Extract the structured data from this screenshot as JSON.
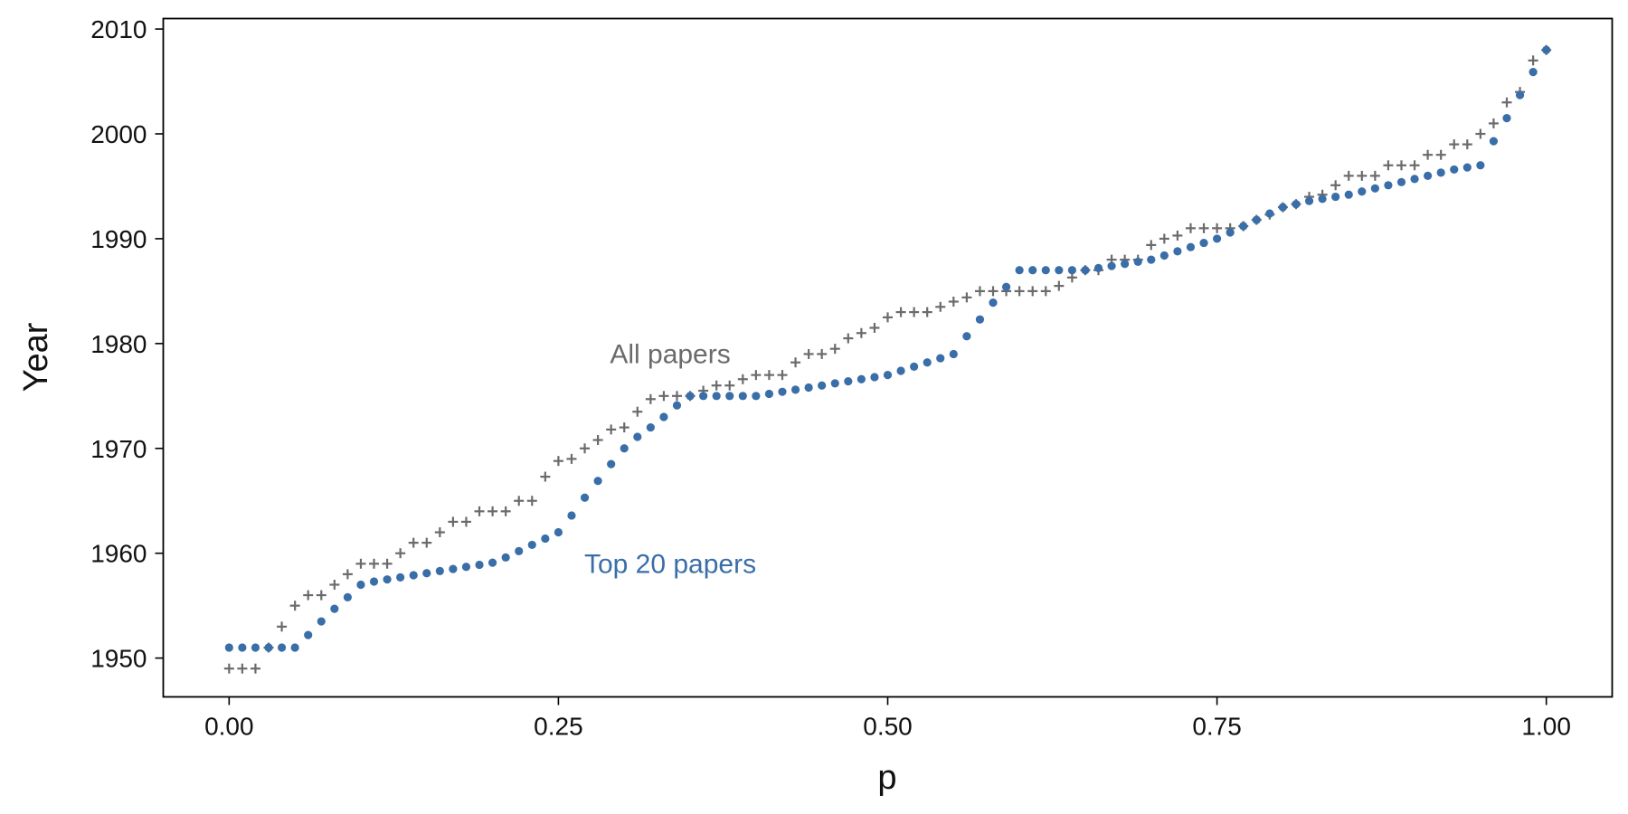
{
  "chart_data": {
    "type": "scatter",
    "xlabel": "p",
    "ylabel": "Year",
    "xlim": [
      -0.05,
      1.05
    ],
    "ylim": [
      1946.3,
      2011
    ],
    "xticks": [
      0,
      0.25,
      0.5,
      0.75,
      1
    ],
    "xtick_labels": [
      "0.00",
      "0.25",
      "0.50",
      "0.75",
      "1.00"
    ],
    "yticks": [
      1950,
      1960,
      1970,
      1980,
      1990,
      2000,
      2010
    ],
    "ytick_labels": [
      "1950",
      "1960",
      "1970",
      "1980",
      "1990",
      "2000",
      "2010"
    ],
    "grid": false,
    "legend": "none",
    "annotations": [
      {
        "text": "All papers",
        "x": 0.35,
        "y": 1979,
        "color": "#6b6b6b"
      },
      {
        "text": "Top 20 papers",
        "x": 0.35,
        "y": 1959,
        "color": "#3a6ea8"
      }
    ],
    "series": [
      {
        "marker": "plus",
        "color": "#6b6b6b",
        "x": [
          0.0,
          0.01,
          0.02,
          0.03,
          0.04,
          0.05,
          0.06,
          0.07,
          0.08,
          0.09,
          0.1,
          0.11,
          0.12,
          0.13,
          0.14,
          0.15,
          0.16,
          0.17,
          0.18,
          0.19,
          0.2,
          0.21,
          0.22,
          0.23,
          0.24,
          0.25,
          0.26,
          0.27,
          0.28,
          0.29,
          0.3,
          0.31,
          0.32,
          0.33,
          0.34,
          0.35,
          0.36,
          0.37,
          0.38,
          0.39,
          0.4,
          0.41,
          0.42,
          0.43,
          0.44,
          0.45,
          0.46,
          0.47,
          0.48,
          0.49,
          0.5,
          0.51,
          0.52,
          0.53,
          0.54,
          0.55,
          0.56,
          0.57,
          0.58,
          0.59,
          0.6,
          0.61,
          0.62,
          0.63,
          0.64,
          0.65,
          0.66,
          0.67,
          0.68,
          0.69,
          0.7,
          0.71,
          0.72,
          0.73,
          0.74,
          0.75,
          0.76,
          0.77,
          0.78,
          0.79,
          0.8,
          0.81,
          0.82,
          0.83,
          0.84,
          0.85,
          0.86,
          0.87,
          0.88,
          0.89,
          0.9,
          0.91,
          0.92,
          0.93,
          0.94,
          0.95,
          0.96,
          0.97,
          0.98,
          0.99,
          1.0
        ],
        "y": [
          1949,
          1949,
          1949,
          1951,
          1953,
          1955,
          1956,
          1956,
          1957,
          1958,
          1959,
          1959,
          1959,
          1960,
          1961,
          1961,
          1962,
          1963,
          1963,
          1964,
          1964,
          1964,
          1965,
          1965,
          1967.3,
          1968.8,
          1969,
          1970,
          1970.8,
          1971.8,
          1972,
          1973.5,
          1974.7,
          1975,
          1975,
          1975,
          1975.5,
          1976,
          1976,
          1976.6,
          1977,
          1977,
          1977,
          1978.2,
          1979,
          1979,
          1979.5,
          1980.5,
          1981,
          1981.5,
          1982.5,
          1983,
          1983,
          1983,
          1983.5,
          1984,
          1984.4,
          1985,
          1985,
          1985,
          1985,
          1985,
          1985,
          1985.5,
          1986.3,
          1987,
          1987,
          1988,
          1988,
          1988,
          1989.4,
          1990,
          1990.3,
          1991,
          1991,
          1991,
          1991,
          1991.2,
          1991.8,
          1992.3,
          1993,
          1993.3,
          1994,
          1994.2,
          1995.1,
          1996,
          1996,
          1996,
          1997,
          1997,
          1997,
          1998,
          1998,
          1999,
          1999,
          2000,
          2001,
          2003,
          2004,
          2007,
          2008
        ]
      },
      {
        "marker": "circle",
        "color": "#3a6ea8",
        "x": [
          0.0,
          0.01,
          0.02,
          0.03,
          0.04,
          0.05,
          0.06,
          0.07,
          0.08,
          0.09,
          0.1,
          0.11,
          0.12,
          0.13,
          0.14,
          0.15,
          0.16,
          0.17,
          0.18,
          0.19,
          0.2,
          0.21,
          0.22,
          0.23,
          0.24,
          0.25,
          0.26,
          0.27,
          0.28,
          0.29,
          0.3,
          0.31,
          0.32,
          0.33,
          0.34,
          0.35,
          0.36,
          0.37,
          0.38,
          0.39,
          0.4,
          0.41,
          0.42,
          0.43,
          0.44,
          0.45,
          0.46,
          0.47,
          0.48,
          0.49,
          0.5,
          0.51,
          0.52,
          0.53,
          0.54,
          0.55,
          0.56,
          0.57,
          0.58,
          0.59,
          0.6,
          0.61,
          0.62,
          0.63,
          0.64,
          0.65,
          0.66,
          0.67,
          0.68,
          0.69,
          0.7,
          0.71,
          0.72,
          0.73,
          0.74,
          0.75,
          0.76,
          0.77,
          0.78,
          0.79,
          0.8,
          0.81,
          0.82,
          0.83,
          0.84,
          0.85,
          0.86,
          0.87,
          0.88,
          0.89,
          0.9,
          0.91,
          0.92,
          0.93,
          0.94,
          0.95,
          0.96,
          0.97,
          0.98,
          0.99,
          1.0
        ],
        "y": [
          1951,
          1951,
          1951,
          1951,
          1951,
          1951,
          1952.2,
          1953.5,
          1954.7,
          1955.8,
          1957,
          1957.3,
          1957.5,
          1957.7,
          1957.9,
          1958.1,
          1958.3,
          1958.5,
          1958.7,
          1958.9,
          1959.1,
          1959.6,
          1960.2,
          1960.8,
          1961.4,
          1962,
          1963.6,
          1965.3,
          1966.9,
          1968.5,
          1970,
          1971.1,
          1972,
          1973,
          1974.1,
          1975,
          1975,
          1975,
          1975,
          1975,
          1975,
          1975.2,
          1975.4,
          1975.6,
          1975.8,
          1976,
          1976.2,
          1976.4,
          1976.6,
          1976.8,
          1977,
          1977.4,
          1977.8,
          1978.2,
          1978.6,
          1979,
          1980.7,
          1982.3,
          1983.9,
          1985.4,
          1987,
          1987,
          1987,
          1987,
          1987,
          1987,
          1987.2,
          1987.4,
          1987.6,
          1987.8,
          1988,
          1988.4,
          1988.8,
          1989.2,
          1989.6,
          1990,
          1990.6,
          1991.2,
          1991.8,
          1992.4,
          1993,
          1993.3,
          1993.6,
          1993.8,
          1994,
          1994.2,
          1994.5,
          1994.8,
          1995.1,
          1995.4,
          1995.7,
          1996,
          1996.3,
          1996.6,
          1996.8,
          1997,
          1999.3,
          2001.5,
          2003.7,
          2005.9,
          2008
        ]
      }
    ]
  }
}
